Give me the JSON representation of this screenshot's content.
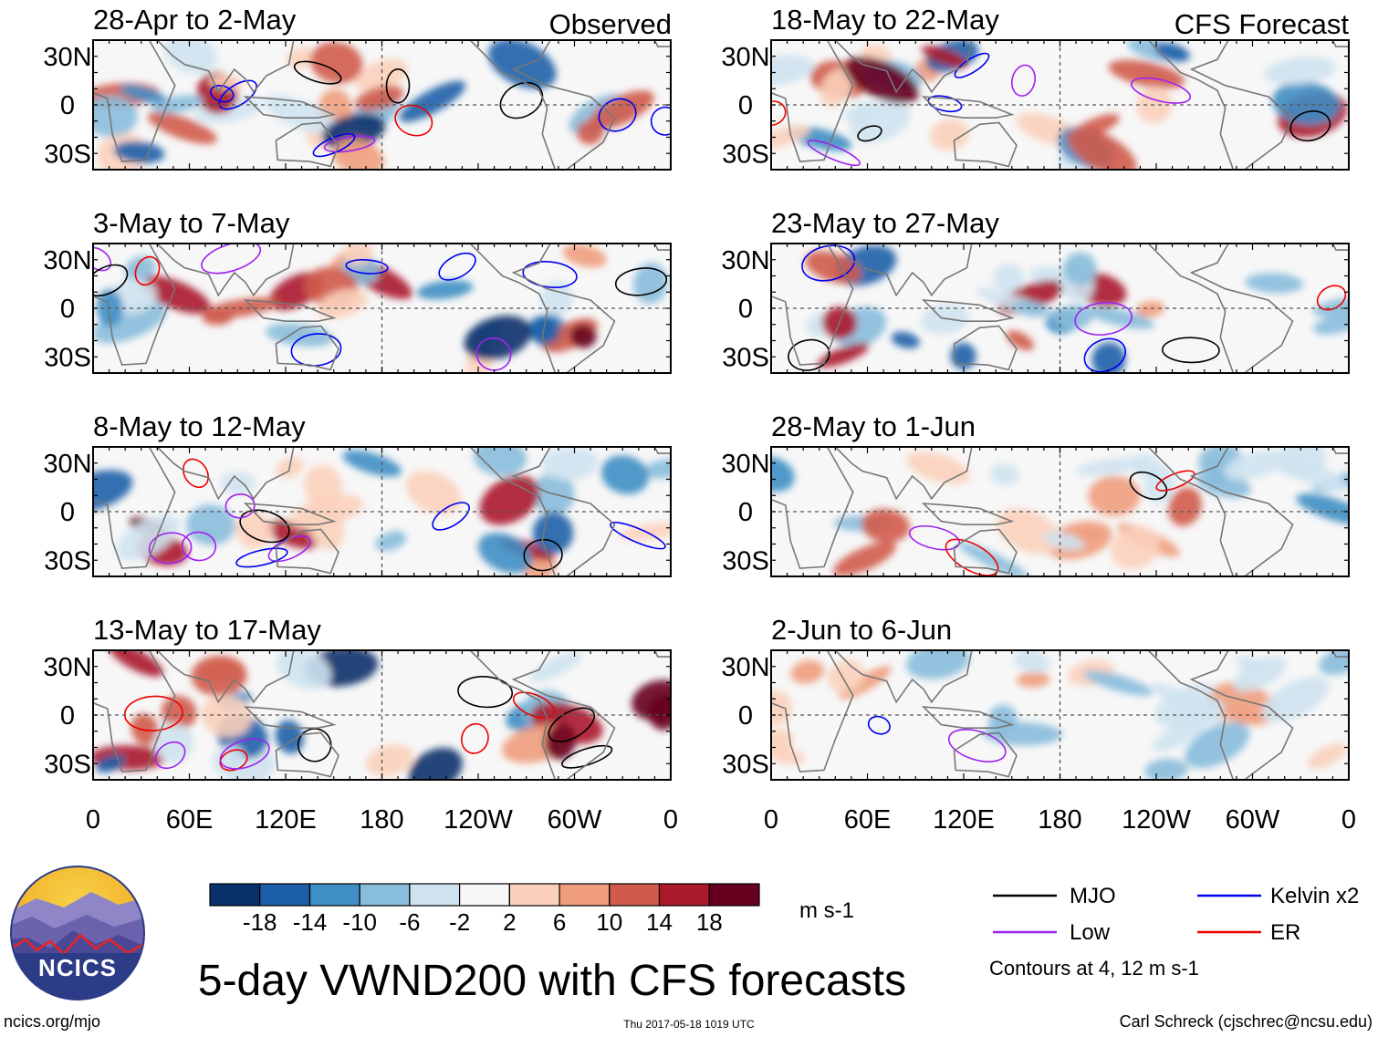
{
  "figure": {
    "title": "5-day VWND200 with CFS forecasts",
    "url_text": "ncics.org/mjo",
    "timestamp": "Thu 2017-05-18 1019 UTC",
    "author": "Carl Schreck (cjschrec@ncsu.edu)",
    "logo_text": "NCICS",
    "column_headers": {
      "observed": "Observed",
      "forecast": "CFS Forecast"
    }
  },
  "chart_data": {
    "type": "heatmap",
    "variable": "200-hPa meridional wind anomaly (VWND200)",
    "units": "m s-1",
    "x_axis": {
      "ticks": [
        "0",
        "60E",
        "120E",
        "180",
        "120W",
        "60W",
        "0"
      ],
      "range_deg": [
        0,
        360
      ]
    },
    "y_axis": {
      "ticks": [
        "30N",
        "0",
        "30S"
      ],
      "range_deg": [
        -40,
        40
      ]
    },
    "colorbar": {
      "tick_labels": [
        "-18",
        "-14",
        "-10",
        "-6",
        "-2",
        "2",
        "6",
        "10",
        "14",
        "18"
      ],
      "levels": [
        -18,
        -14,
        -10,
        -6,
        -2,
        2,
        6,
        10,
        14,
        18
      ],
      "colors": [
        "#08306b",
        "#1c5fa8",
        "#3f8ec4",
        "#88bddb",
        "#cfe3ef",
        "#f7f7f7",
        "#fbd0bb",
        "#ef9d7d",
        "#d05b4b",
        "#ab1a2b",
        "#67001f"
      ],
      "units_label": "m s-1"
    },
    "legend": {
      "items": [
        {
          "label": "MJO",
          "color": "#000000"
        },
        {
          "label": "Kelvin x2",
          "color": "#0000ee"
        },
        {
          "label": "Low",
          "color": "#a020f0"
        },
        {
          "label": "ER",
          "color": "#ee0000"
        }
      ],
      "note": "Contours at 4, 12 m s-1"
    },
    "panels": [
      {
        "period": "28-Apr to 2-May",
        "source": "Observed"
      },
      {
        "period": "3-May to 7-May",
        "source": "Observed"
      },
      {
        "period": "8-May to 12-May",
        "source": "Observed"
      },
      {
        "period": "13-May to 17-May",
        "source": "Observed"
      },
      {
        "period": "18-May to 22-May",
        "source": "CFS Forecast"
      },
      {
        "period": "23-May to 27-May",
        "source": "CFS Forecast"
      },
      {
        "period": "28-May to 1-Jun",
        "source": "CFS Forecast"
      },
      {
        "period": "2-Jun to 6-Jun",
        "source": "CFS Forecast"
      }
    ]
  }
}
